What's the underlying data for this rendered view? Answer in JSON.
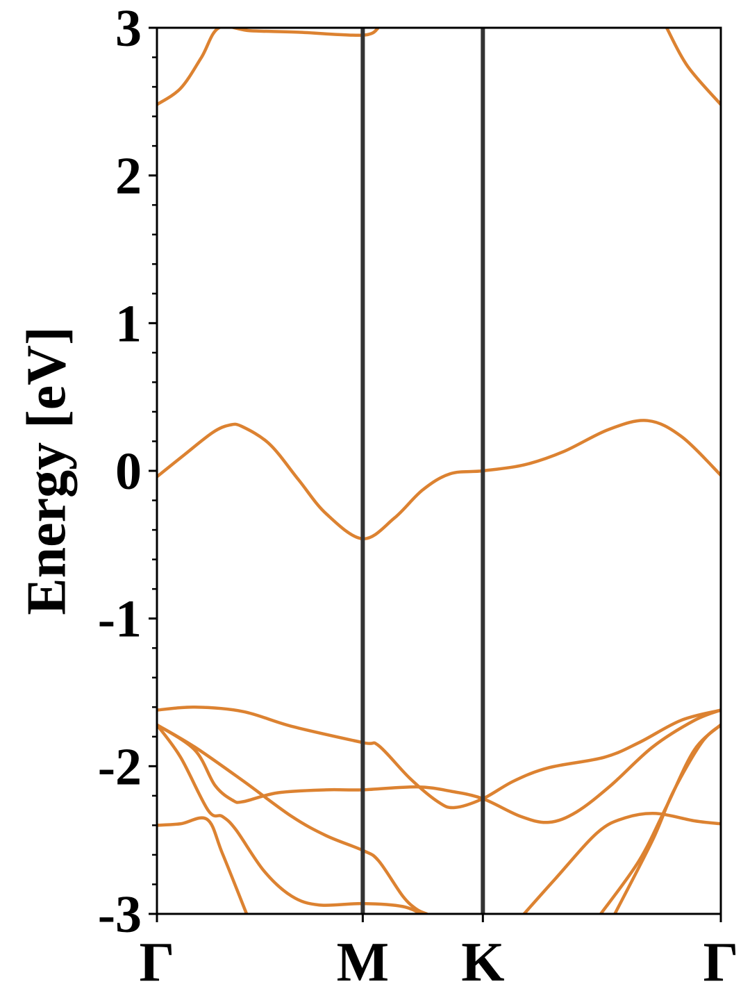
{
  "chart_data": {
    "type": "line",
    "y_label": "Energy [eV]",
    "xlim": [
      0,
      1
    ],
    "ylim": [
      -3,
      3
    ],
    "xticks": [
      {
        "value": 0,
        "label": "Γ"
      },
      {
        "value": 0.365,
        "label": "M"
      },
      {
        "value": 0.578,
        "label": "K"
      },
      {
        "value": 1,
        "label": "Γ"
      }
    ],
    "yticks": [
      -3,
      -2,
      -1,
      0,
      1,
      2,
      3
    ],
    "yminorticks": [
      -2.8,
      -2.6,
      -2.4,
      -2.2,
      -1.8,
      -1.6,
      -1.4,
      -1.2,
      -0.8,
      -0.6,
      -0.4,
      -0.2,
      0.2,
      0.4,
      0.6,
      0.8,
      1.2,
      1.4,
      1.6,
      1.8,
      2.2,
      2.4,
      2.6,
      2.8
    ],
    "vlines": true,
    "vline_color": "#333333",
    "series": [
      {
        "color": "#dc8231",
        "x": [
          0,
          0.042,
          0.079,
          0.11,
          0.165,
          0.251,
          0.365,
          0.393
        ],
        "values": [
          2.48,
          2.59,
          2.8,
          3.0,
          2.98,
          2.97,
          2.95,
          3.0
        ]
      },
      {
        "color": "#dc8231",
        "x": [
          0.904,
          0.941,
          1
        ],
        "values": [
          3.0,
          2.74,
          2.48
        ]
      },
      {
        "color": "#dc8231",
        "x": [
          0,
          0.049,
          0.099,
          0.129,
          0.151,
          0.2,
          0.251,
          0.3,
          0.365,
          0.421,
          0.471,
          0.52,
          0.578,
          0.651,
          0.721,
          0.801,
          0.87,
          0.931,
          1
        ],
        "values": [
          -0.04,
          0.11,
          0.26,
          0.31,
          0.3,
          0.18,
          -0.06,
          -0.29,
          -0.46,
          -0.32,
          -0.13,
          -0.02,
          0.0,
          0.04,
          0.13,
          0.28,
          0.34,
          0.23,
          -0.03
        ]
      },
      {
        "color": "#dc8231",
        "x": [
          0,
          0.067,
          0.153,
          0.239,
          0.365,
          0.393,
          0.448,
          0.498,
          0.528,
          0.578,
          0.633,
          0.695,
          0.793,
          0.855,
          0.929,
          1
        ],
        "values": [
          -1.62,
          -1.6,
          -1.63,
          -1.73,
          -1.84,
          -1.86,
          -2.08,
          -2.24,
          -2.28,
          -2.22,
          -2.1,
          -2.01,
          -1.94,
          -1.84,
          -1.69,
          -1.62
        ]
      },
      {
        "color": "#dc8231",
        "x": [
          0,
          0.067,
          0.103,
          0.134,
          0.153,
          0.214,
          0.3,
          0.365,
          0.461,
          0.522,
          0.578,
          0.645,
          0.695,
          0.744,
          0.805,
          0.879,
          0.953,
          1
        ],
        "values": [
          -1.72,
          -1.89,
          -2.13,
          -2.23,
          -2.24,
          -2.18,
          -2.16,
          -2.16,
          -2.14,
          -2.17,
          -2.22,
          -2.34,
          -2.38,
          -2.31,
          -2.13,
          -1.87,
          -1.69,
          -1.62
        ]
      },
      {
        "color": "#dc8231",
        "x": [
          0,
          0.067,
          0.153,
          0.239,
          0.3,
          0.365,
          0.393,
          0.436,
          0.461,
          0.479
        ],
        "values": [
          -1.72,
          -1.87,
          -2.1,
          -2.34,
          -2.47,
          -2.57,
          -2.64,
          -2.88,
          -2.97,
          -3.0
        ]
      },
      {
        "color": "#dc8231",
        "x": [
          0,
          0.042,
          0.091,
          0.116,
          0.14,
          0.19,
          0.239,
          0.288,
          0.365,
          0.436,
          0.473
        ],
        "values": [
          -1.72,
          -1.94,
          -2.3,
          -2.34,
          -2.43,
          -2.71,
          -2.88,
          -2.94,
          -2.93,
          -2.95,
          -3.01
        ]
      },
      {
        "color": "#dc8231",
        "x": [
          0,
          0.042,
          0.089,
          0.116,
          0.159
        ],
        "values": [
          -2.4,
          -2.39,
          -2.36,
          -2.59,
          -3.0
        ]
      },
      {
        "color": "#dc8231",
        "x": [
          0.651,
          0.707,
          0.781,
          0.83,
          0.885,
          0.953,
          1
        ],
        "values": [
          -3.0,
          -2.76,
          -2.45,
          -2.35,
          -2.32,
          -2.37,
          -2.39
        ]
      },
      {
        "color": "#dc8231",
        "x": [
          0.787,
          0.855,
          0.904,
          0.953,
          1
        ],
        "values": [
          -3.0,
          -2.64,
          -2.27,
          -1.89,
          -1.72
        ]
      },
      {
        "color": "#dc8231",
        "x": [
          0.812,
          0.879,
          0.916,
          0.966,
          1
        ],
        "values": [
          -3.0,
          -2.5,
          -2.17,
          -1.84,
          -1.72
        ]
      }
    ]
  }
}
